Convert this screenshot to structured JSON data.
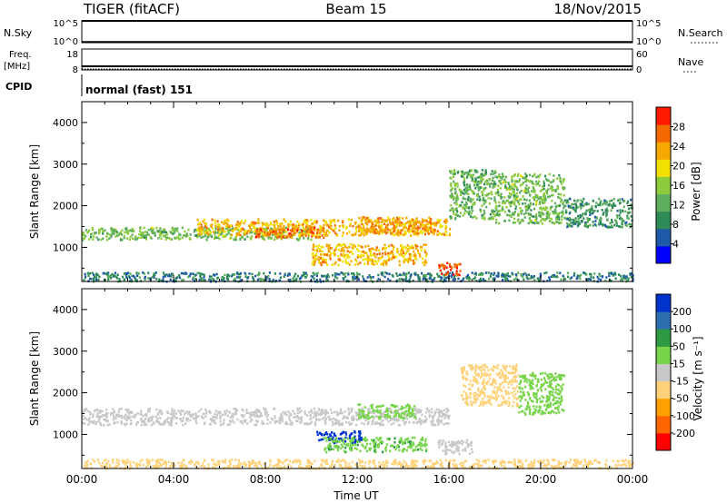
{
  "header": {
    "radar": "TIGER (fitACF)",
    "beam": "Beam 15",
    "date": "18/Nov/2015"
  },
  "nsky_panel": {
    "left_label": "N.Sky",
    "right_label": "N.Search",
    "left_ticks": [
      "10^5",
      "10^0"
    ],
    "right_ticks": [
      "10^5",
      "10^0"
    ]
  },
  "freq_panel": {
    "left_label_1": "Freq.",
    "left_label_2": "[MHz]",
    "right_label": "Nave",
    "left_ticks": [
      "18",
      "8"
    ],
    "right_ticks": [
      "60",
      "0"
    ]
  },
  "cpid_panel": {
    "label": "CPID",
    "text": "normal (fast) 151"
  },
  "colors": {
    "power_scale": [
      "#0000ff",
      "#1e5aa8",
      "#2e8b57",
      "#5fae5f",
      "#8ccc3c",
      "#f2e000",
      "#f7a800",
      "#f56a00",
      "#ff1a00"
    ],
    "velocity_scale": [
      "#ff0000",
      "#ff6600",
      "#ffa000",
      "#ffd27a",
      "#c8c8c8",
      "#78d44a",
      "#2e9a44",
      "#2e6fb0",
      "#0033cc"
    ]
  },
  "chart_data": [
    {
      "type": "heatmap",
      "name": "power",
      "title": "",
      "xlabel": "",
      "ylabel": "Slant Range [km]",
      "x_ticks": [
        "00:00",
        "04:00",
        "08:00",
        "12:00",
        "16:00",
        "20:00",
        "00:00"
      ],
      "y_ticks": [
        1000,
        2000,
        3000,
        4000
      ],
      "xlim": [
        0,
        24
      ],
      "ylim": [
        180,
        4500
      ],
      "colorbar": {
        "label": "Power [dB]",
        "ticks": [
          4,
          8,
          12,
          16,
          20,
          24,
          28
        ],
        "range": [
          0,
          32
        ]
      },
      "features": [
        {
          "t": [
            0.0,
            24.0
          ],
          "range": [
            200,
            420
          ],
          "value": 8
        },
        {
          "t": [
            0.0,
            10.0
          ],
          "range": [
            1200,
            1500
          ],
          "value": 14
        },
        {
          "t": [
            5.0,
            16.0
          ],
          "range": [
            1300,
            1700
          ],
          "value": 22
        },
        {
          "t": [
            7.5,
            10.5
          ],
          "range": [
            1250,
            1500
          ],
          "value": 26
        },
        {
          "t": [
            10.0,
            15.0
          ],
          "range": [
            600,
            1100
          ],
          "value": 22
        },
        {
          "t": [
            12.0,
            15.5
          ],
          "range": [
            1350,
            1750
          ],
          "value": 24
        },
        {
          "t": [
            15.5,
            16.5
          ],
          "range": [
            350,
            650
          ],
          "value": 28
        },
        {
          "t": [
            16.0,
            18.0
          ],
          "range": [
            1700,
            2900
          ],
          "value": 13
        },
        {
          "t": [
            18.0,
            21.0
          ],
          "range": [
            1600,
            2800
          ],
          "value": 14
        },
        {
          "t": [
            21.0,
            24.0
          ],
          "range": [
            1500,
            2200
          ],
          "value": 10
        }
      ]
    },
    {
      "type": "heatmap",
      "name": "velocity",
      "title": "",
      "xlabel": "Time UT",
      "ylabel": "Slant Range [km]",
      "x_ticks": [
        "00:00",
        "04:00",
        "08:00",
        "12:00",
        "16:00",
        "20:00",
        "00:00"
      ],
      "y_ticks": [
        1000,
        2000,
        3000,
        4000
      ],
      "xlim": [
        0,
        24
      ],
      "ylim": [
        180,
        4500
      ],
      "colorbar": {
        "label": "Velocity [m s⁻¹]",
        "ticks": [
          200,
          100,
          50,
          15,
          -15,
          -50,
          -100,
          -200
        ]
      },
      "features": [
        {
          "t": [
            0.0,
            24.0
          ],
          "range": [
            200,
            420
          ],
          "value": -30
        },
        {
          "t": [
            0.0,
            16.0
          ],
          "range": [
            1250,
            1650
          ],
          "value": 0
        },
        {
          "t": [
            10.2,
            12.2
          ],
          "range": [
            820,
            1100
          ],
          "value": 220
        },
        {
          "t": [
            10.5,
            15.0
          ],
          "range": [
            600,
            950
          ],
          "value": 40
        },
        {
          "t": [
            12.0,
            14.5
          ],
          "range": [
            1400,
            1750
          ],
          "value": 30
        },
        {
          "t": [
            15.5,
            17.0
          ],
          "range": [
            550,
            900
          ],
          "value": 0
        },
        {
          "t": [
            16.5,
            19.0
          ],
          "range": [
            1700,
            2700
          ],
          "value": -30
        },
        {
          "t": [
            19.0,
            21.0
          ],
          "range": [
            1500,
            2500
          ],
          "value": 30
        }
      ]
    }
  ]
}
